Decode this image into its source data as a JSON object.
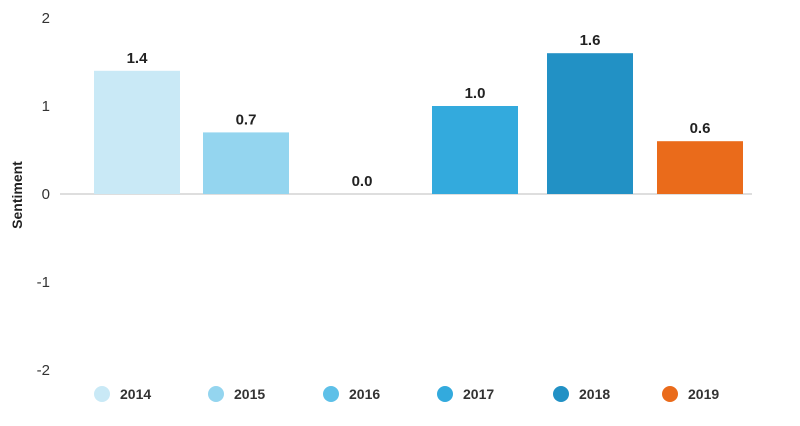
{
  "chart_data": {
    "type": "bar",
    "categories": [
      "2014",
      "2015",
      "2016",
      "2017",
      "2018",
      "2019"
    ],
    "values": [
      1.4,
      0.7,
      0.0,
      1.0,
      1.6,
      0.6
    ],
    "data_labels": [
      "1.4",
      "0.7",
      "0.0",
      "1.0",
      "1.6",
      "0.6"
    ],
    "colors": [
      "#c9e9f6",
      "#94d5ef",
      "#5ec0e8",
      "#33aadd",
      "#2291c5",
      "#ea6b1b"
    ],
    "title": "",
    "xlabel": "",
    "ylabel": "Sentiment",
    "ylim": [
      -2,
      2
    ],
    "yticks": [
      2,
      1,
      0,
      -1,
      -2
    ],
    "ytick_labels": [
      "2",
      "1",
      "0",
      "-1",
      "-2"
    ],
    "grid": false,
    "zero_line": true,
    "legend": {
      "placement": "bottom",
      "entries": [
        "2014",
        "2015",
        "2016",
        "2017",
        "2018",
        "2019"
      ]
    }
  }
}
